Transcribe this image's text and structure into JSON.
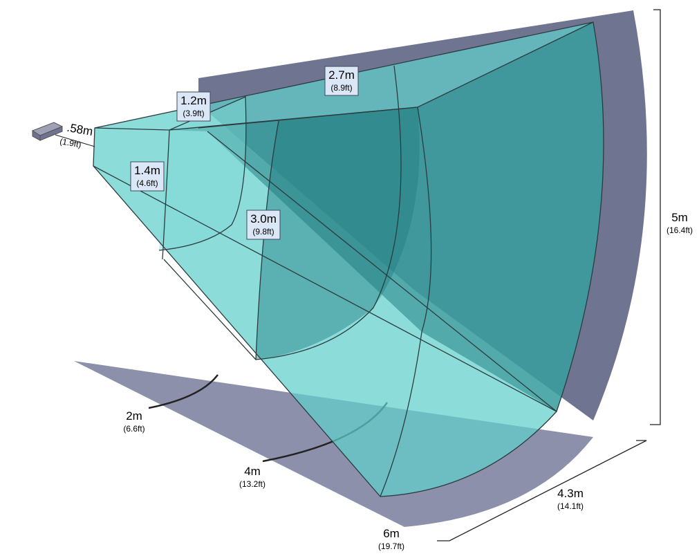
{
  "boxed_labels": [
    {
      "metric": "1.2m",
      "imperial": "(3.9ft)"
    },
    {
      "metric": "2.7m",
      "imperial": "(8.9ft)"
    },
    {
      "metric": "1.4m",
      "imperial": "(4.6ft)"
    },
    {
      "metric": "3.0m",
      "imperial": "(9.8ft)"
    }
  ],
  "plain_labels": [
    {
      "metric": ".58m",
      "imperial": "(1.9ft)"
    },
    {
      "metric": "5m",
      "imperial": "(16.4ft)"
    },
    {
      "metric": "2m",
      "imperial": "(6.6ft)"
    },
    {
      "metric": "4m",
      "imperial": "(13.2ft)"
    },
    {
      "metric": "6m",
      "imperial": "(19.7ft)"
    },
    {
      "metric": "4.3m",
      "imperial": "(14.1ft)"
    }
  ]
}
